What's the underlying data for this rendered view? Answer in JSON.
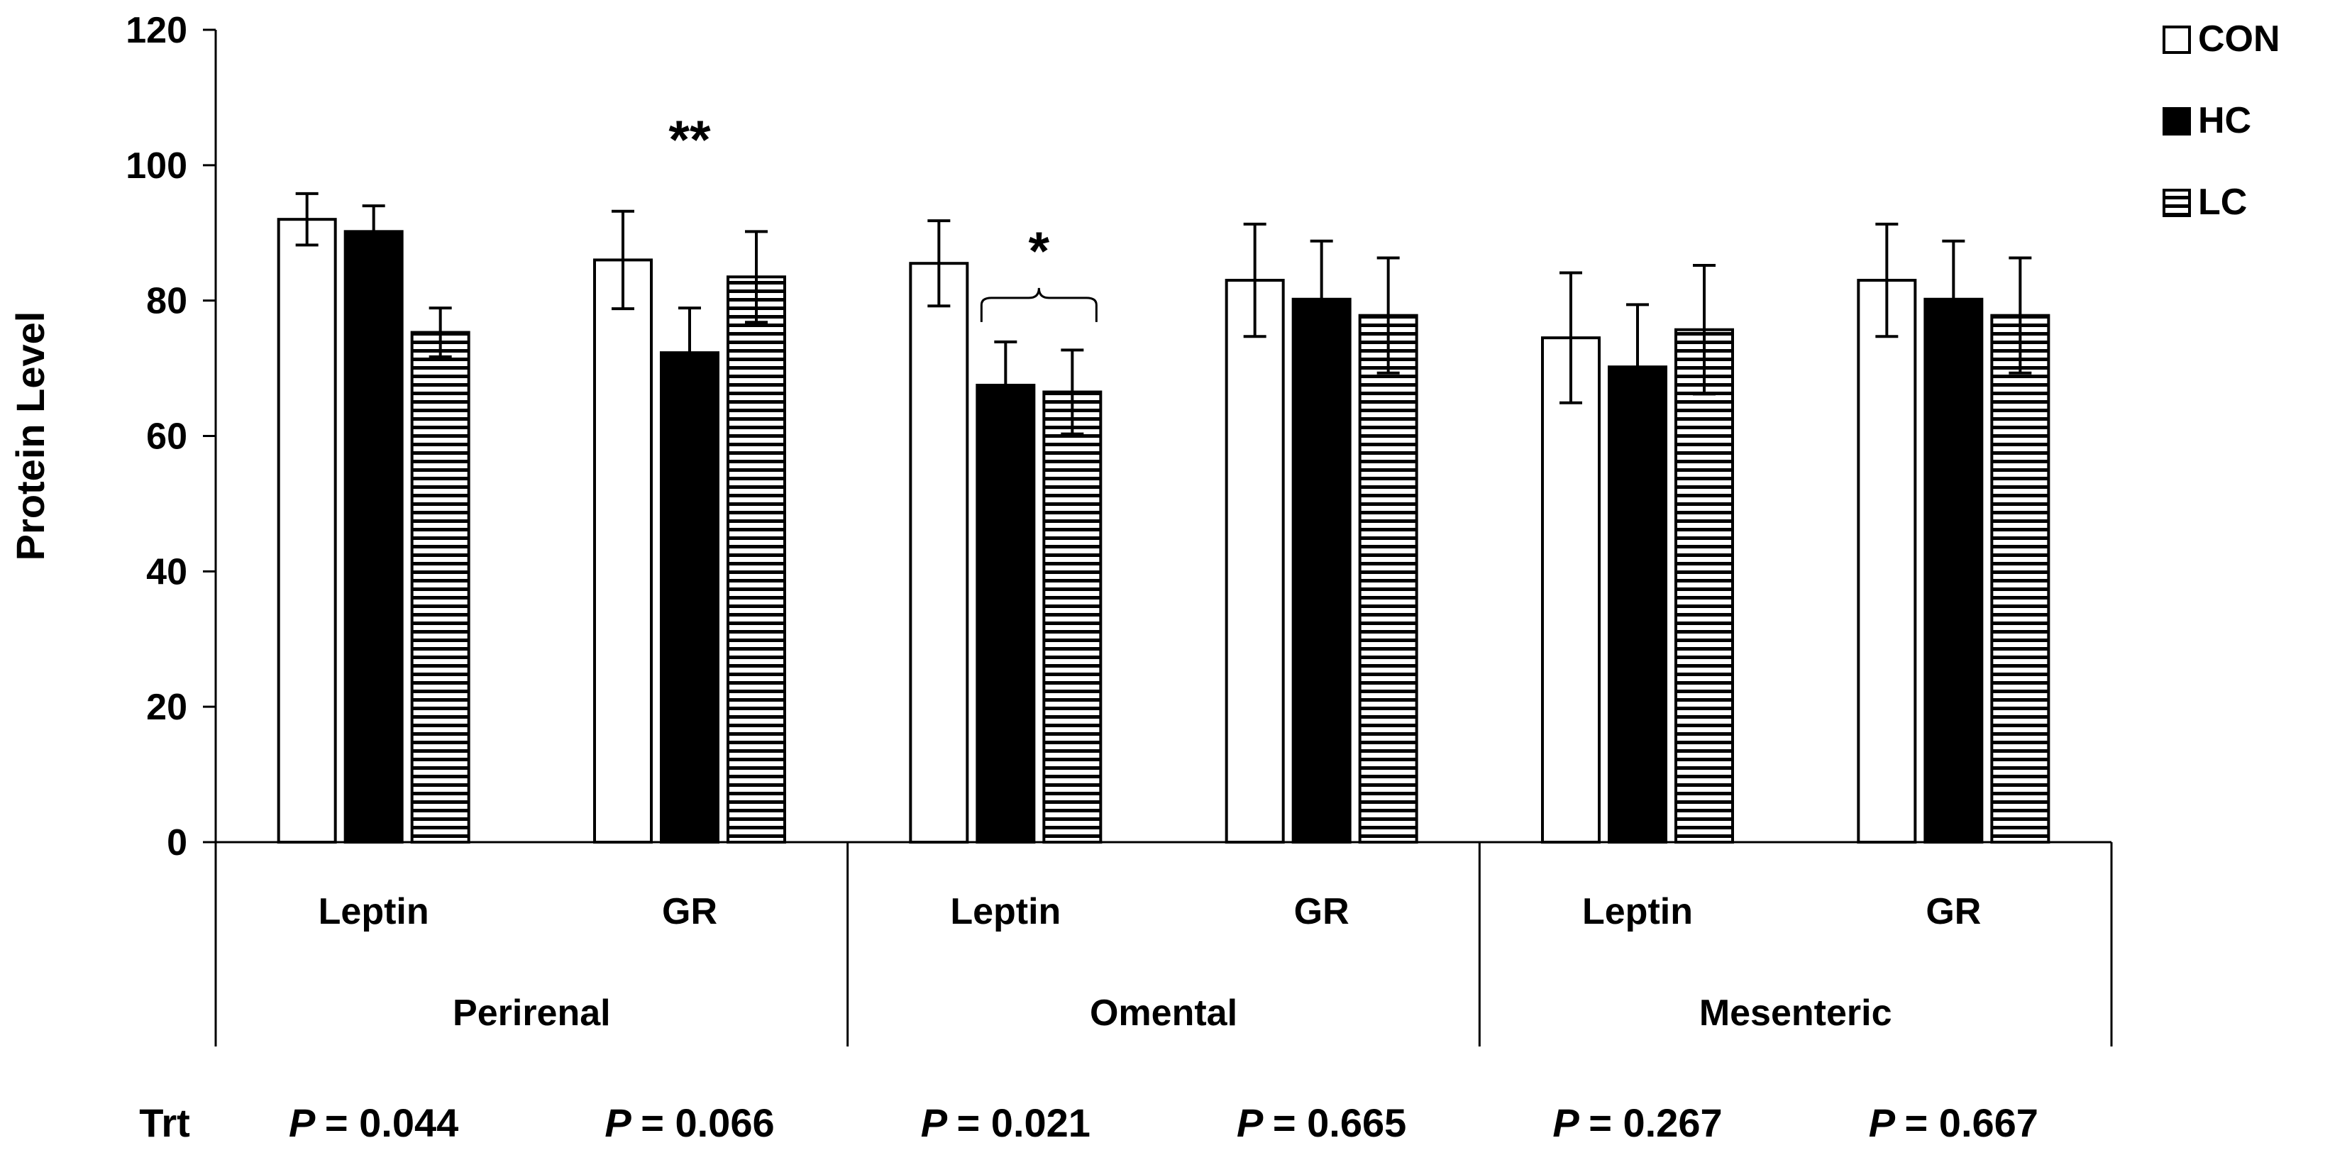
{
  "chart_data": {
    "type": "bar",
    "title": "",
    "xlabel": "",
    "ylabel": "Protein Level",
    "ylim": [
      0,
      120
    ],
    "yticks": [
      "0",
      "20",
      "40",
      "60",
      "80",
      "100",
      "120"
    ],
    "categories": [
      "Leptin",
      "GR",
      "Leptin",
      "GR",
      "Leptin",
      "GR"
    ],
    "groups": [
      "Perirenal",
      "Omental",
      "Mesenteric"
    ],
    "series": [
      {
        "name": "CON",
        "pattern": "open",
        "values": [
          92,
          86,
          85.5,
          83,
          74.5,
          83
        ],
        "errors": [
          3.8,
          7.2,
          6.3,
          8.3,
          9.6,
          8.3
        ]
      },
      {
        "name": "HC",
        "pattern": "solid",
        "values": [
          90.2,
          72.3,
          67.5,
          80.2,
          70.2,
          80.2
        ],
        "errors": [
          3.8,
          6.6,
          6.4,
          8.6,
          9.2,
          8.6
        ]
      },
      {
        "name": "LC",
        "pattern": "horizontal-stripes",
        "values": [
          75.3,
          83.5,
          66.5,
          77.8,
          75.7,
          77.8
        ],
        "errors": [
          3.6,
          6.7,
          6.2,
          8.5,
          9.5,
          8.5
        ]
      }
    ],
    "legend_position": "top-right",
    "annotations": [
      {
        "text": "**",
        "category_index": 1,
        "series": "HC"
      },
      {
        "text": "*",
        "category_index": 2,
        "series": [
          "HC",
          "LC"
        ],
        "bracket": true
      }
    ],
    "p_values": {
      "row_label": "Trt",
      "p_symbol": "P",
      "values": [
        "= 0.044",
        "= 0.066",
        "= 0.021",
        "= 0.665",
        "= 0.267",
        "= 0.667"
      ]
    }
  },
  "colors": {
    "axis": "#000000",
    "bar_stroke": "#000000",
    "con_fill": "#ffffff",
    "hc_fill": "#000000",
    "lc_stripe": "#000000",
    "background": "#ffffff"
  }
}
